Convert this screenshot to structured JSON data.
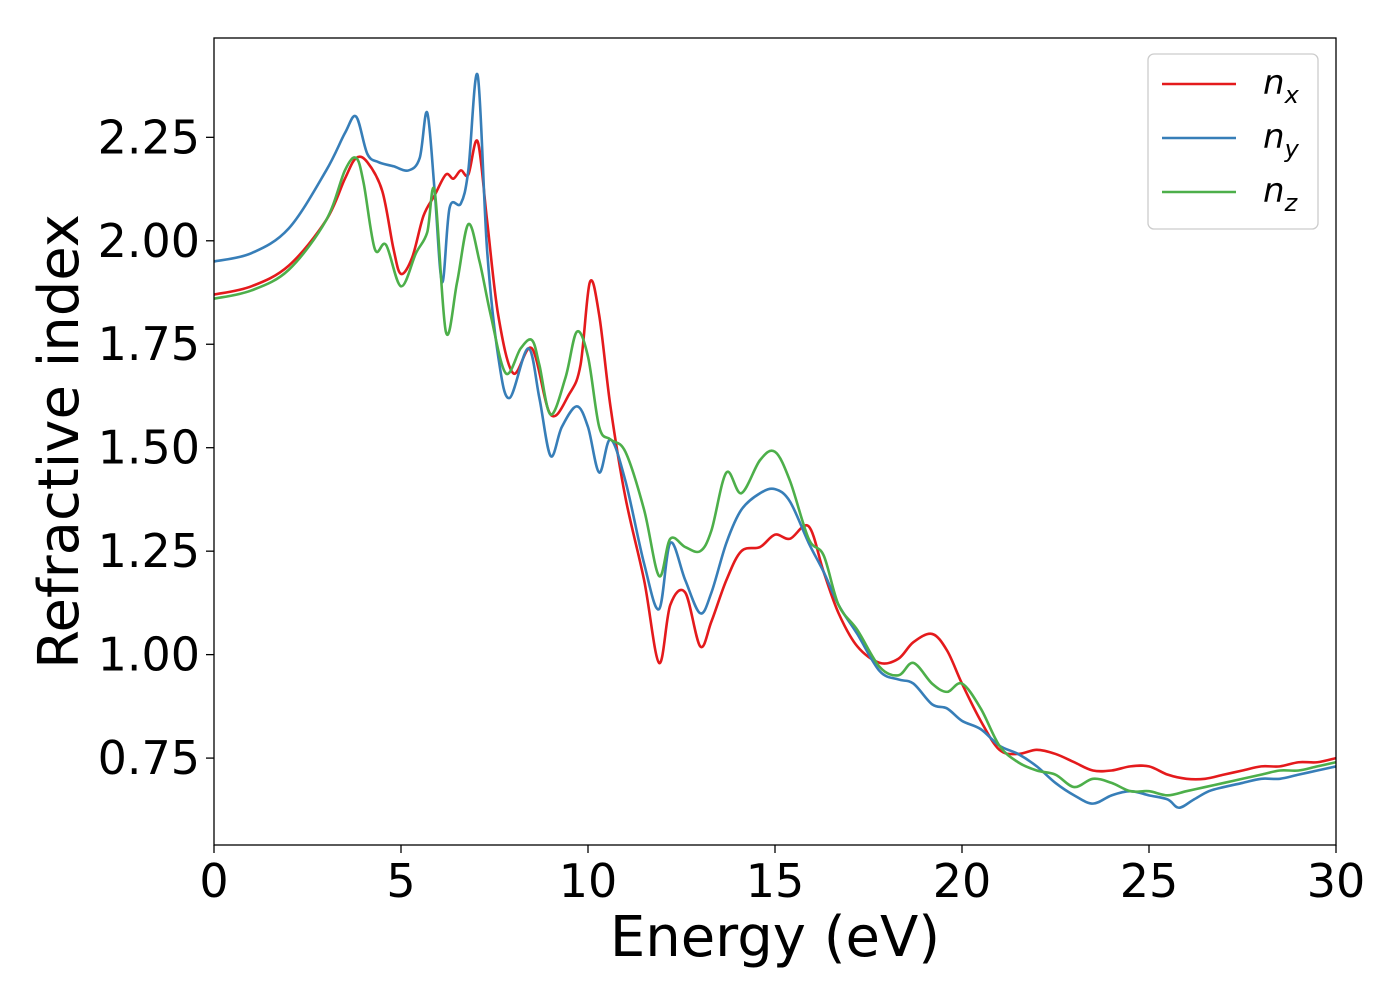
{
  "chart_data": {
    "type": "line",
    "title": "",
    "xlabel": "Energy (eV)",
    "ylabel": "Refractive index",
    "xlim": [
      0,
      30
    ],
    "ylim": [
      0.54,
      2.49
    ],
    "xticks": [
      0,
      5,
      10,
      15,
      20,
      25,
      30
    ],
    "yticks": [
      0.75,
      1.0,
      1.25,
      1.5,
      1.75,
      2.0,
      2.25
    ],
    "xtick_labels": [
      "0",
      "5",
      "10",
      "15",
      "20",
      "25",
      "30"
    ],
    "ytick_labels": [
      "0.75",
      "1.00",
      "1.25",
      "1.50",
      "1.75",
      "2.00",
      "2.25"
    ],
    "grid": false,
    "legend_position": "top-right",
    "series": [
      {
        "name": "n_x",
        "legend_main": "n",
        "legend_sub": "x",
        "color": "#e41a1c",
        "x": [
          0,
          1,
          2,
          3,
          3.5,
          3.8,
          4.1,
          4.5,
          4.8,
          5.0,
          5.3,
          5.6,
          5.9,
          6.2,
          6.4,
          6.6,
          6.8,
          7.05,
          7.3,
          7.6,
          8.0,
          8.5,
          9.0,
          9.5,
          9.8,
          10.05,
          10.3,
          10.6,
          11.0,
          11.5,
          11.9,
          12.2,
          12.6,
          13.0,
          13.3,
          13.7,
          14.1,
          14.6,
          15.0,
          15.4,
          15.9,
          16.3,
          16.7,
          17.2,
          17.8,
          18.3,
          18.7,
          19.2,
          19.6,
          20.0,
          20.5,
          21.0,
          21.5,
          22.0,
          22.5,
          23.0,
          23.5,
          24.0,
          24.5,
          25.0,
          25.5,
          26.0,
          26.5,
          27.0,
          27.5,
          28.0,
          28.5,
          29.0,
          29.5,
          30.0
        ],
        "y": [
          1.87,
          1.89,
          1.94,
          2.05,
          2.15,
          2.2,
          2.19,
          2.12,
          1.98,
          1.92,
          1.96,
          2.06,
          2.11,
          2.16,
          2.15,
          2.17,
          2.16,
          2.24,
          2.05,
          1.82,
          1.68,
          1.74,
          1.58,
          1.63,
          1.7,
          1.9,
          1.82,
          1.6,
          1.38,
          1.18,
          0.98,
          1.12,
          1.15,
          1.02,
          1.08,
          1.18,
          1.25,
          1.26,
          1.29,
          1.28,
          1.31,
          1.2,
          1.1,
          1.02,
          0.98,
          0.99,
          1.03,
          1.05,
          1.01,
          0.93,
          0.84,
          0.77,
          0.76,
          0.77,
          0.76,
          0.74,
          0.72,
          0.72,
          0.73,
          0.73,
          0.71,
          0.7,
          0.7,
          0.71,
          0.72,
          0.73,
          0.73,
          0.74,
          0.74,
          0.75
        ]
      },
      {
        "name": "n_y",
        "legend_main": "n",
        "legend_sub": "y",
        "color": "#377eb8",
        "x": [
          0,
          1,
          2,
          3,
          3.5,
          3.8,
          4.1,
          4.4,
          4.8,
          5.2,
          5.5,
          5.7,
          5.9,
          6.1,
          6.3,
          6.6,
          6.8,
          7.05,
          7.3,
          7.6,
          7.9,
          8.4,
          8.7,
          9.0,
          9.3,
          9.7,
          10.0,
          10.3,
          10.6,
          11.0,
          11.5,
          11.9,
          12.2,
          12.6,
          13.0,
          13.3,
          13.7,
          14.1,
          14.6,
          15.0,
          15.4,
          15.9,
          16.3,
          16.7,
          17.2,
          17.8,
          18.3,
          18.7,
          19.2,
          19.6,
          20.0,
          20.5,
          21.0,
          21.5,
          22.0,
          22.5,
          23.0,
          23.5,
          24.0,
          24.5,
          25.0,
          25.5,
          25.8,
          26.2,
          26.6,
          27.0,
          27.5,
          28.0,
          28.5,
          29.0,
          29.5,
          30.0
        ],
        "y": [
          1.95,
          1.97,
          2.03,
          2.17,
          2.26,
          2.3,
          2.21,
          2.19,
          2.18,
          2.17,
          2.2,
          2.31,
          2.12,
          1.9,
          2.08,
          2.09,
          2.17,
          2.4,
          1.98,
          1.72,
          1.62,
          1.74,
          1.62,
          1.48,
          1.55,
          1.6,
          1.55,
          1.44,
          1.52,
          1.42,
          1.22,
          1.11,
          1.27,
          1.18,
          1.1,
          1.15,
          1.27,
          1.35,
          1.39,
          1.4,
          1.37,
          1.27,
          1.2,
          1.12,
          1.05,
          0.96,
          0.94,
          0.93,
          0.88,
          0.87,
          0.84,
          0.82,
          0.78,
          0.76,
          0.73,
          0.69,
          0.66,
          0.64,
          0.66,
          0.67,
          0.66,
          0.65,
          0.63,
          0.65,
          0.67,
          0.68,
          0.69,
          0.7,
          0.7,
          0.71,
          0.72,
          0.73
        ]
      },
      {
        "name": "n_z",
        "legend_main": "n",
        "legend_sub": "z",
        "color": "#4daf4a",
        "x": [
          0,
          1,
          2,
          3,
          3.5,
          3.8,
          4.0,
          4.3,
          4.6,
          5.0,
          5.4,
          5.7,
          5.9,
          6.2,
          6.5,
          6.8,
          7.1,
          7.4,
          7.8,
          8.2,
          8.5,
          8.7,
          9.0,
          9.4,
          9.7,
          10.0,
          10.3,
          10.6,
          11.0,
          11.5,
          11.9,
          12.2,
          12.6,
          13.0,
          13.3,
          13.7,
          14.1,
          14.6,
          15.0,
          15.4,
          15.9,
          16.3,
          16.7,
          17.2,
          17.8,
          18.3,
          18.7,
          19.2,
          19.6,
          20.0,
          20.5,
          21.0,
          21.5,
          22.0,
          22.5,
          23.0,
          23.5,
          24.0,
          24.5,
          25.0,
          25.5,
          26.0,
          26.5,
          27.0,
          27.5,
          28.0,
          28.5,
          29.0,
          29.5,
          30.0
        ],
        "y": [
          1.86,
          1.88,
          1.93,
          2.05,
          2.17,
          2.2,
          2.14,
          1.98,
          1.99,
          1.89,
          1.97,
          2.02,
          2.12,
          1.78,
          1.9,
          2.04,
          1.95,
          1.82,
          1.68,
          1.74,
          1.76,
          1.7,
          1.58,
          1.67,
          1.78,
          1.72,
          1.55,
          1.52,
          1.49,
          1.35,
          1.19,
          1.28,
          1.26,
          1.25,
          1.3,
          1.44,
          1.39,
          1.47,
          1.49,
          1.42,
          1.28,
          1.24,
          1.12,
          1.06,
          0.97,
          0.95,
          0.98,
          0.93,
          0.91,
          0.93,
          0.87,
          0.78,
          0.74,
          0.72,
          0.71,
          0.68,
          0.7,
          0.69,
          0.67,
          0.67,
          0.66,
          0.67,
          0.68,
          0.69,
          0.7,
          0.71,
          0.72,
          0.72,
          0.73,
          0.74
        ]
      }
    ]
  }
}
